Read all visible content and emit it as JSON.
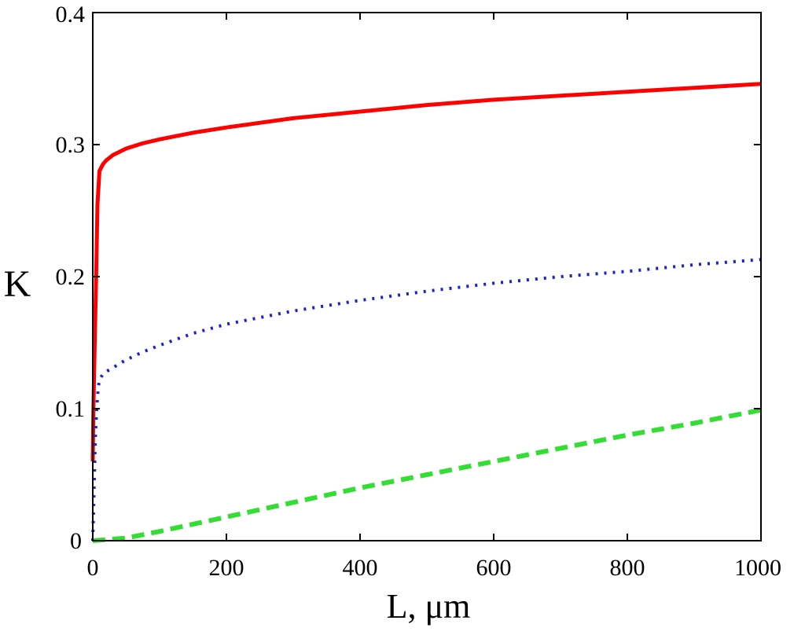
{
  "chart_data": {
    "type": "line",
    "title": "",
    "xlabel": "L, μm",
    "ylabel": "K",
    "xlim": [
      0,
      1000
    ],
    "ylim": [
      0,
      0.4
    ],
    "xticks": [
      0,
      200,
      400,
      600,
      800,
      1000
    ],
    "xtick_labels": [
      "0",
      "200",
      "400",
      "600",
      "800",
      "1000"
    ],
    "yticks": [
      0,
      0.1,
      0.2,
      0.3,
      0.4
    ],
    "ytick_labels": [
      "0",
      "0.1",
      "0.2",
      "0.3",
      "0.4"
    ],
    "grid": false,
    "legend": "none",
    "series": [
      {
        "name": "red-solid",
        "color": "#ff0000",
        "style": "solid",
        "x": [
          0,
          1,
          3,
          5,
          7,
          10,
          15,
          20,
          30,
          50,
          75,
          100,
          150,
          200,
          300,
          400,
          500,
          600,
          700,
          800,
          900,
          1000
        ],
        "y": [
          0.06,
          0.1,
          0.15,
          0.2,
          0.255,
          0.28,
          0.285,
          0.288,
          0.292,
          0.297,
          0.301,
          0.304,
          0.309,
          0.313,
          0.32,
          0.325,
          0.33,
          0.334,
          0.337,
          0.34,
          0.343,
          0.346
        ]
      },
      {
        "name": "blue-dotted",
        "color": "#1f1fd0",
        "style": "dotted",
        "x": [
          0,
          2,
          4,
          6,
          8,
          10,
          15,
          20,
          30,
          50,
          75,
          100,
          150,
          200,
          300,
          400,
          500,
          600,
          700,
          800,
          900,
          1000
        ],
        "y": [
          0.0,
          0.04,
          0.08,
          0.1,
          0.115,
          0.122,
          0.126,
          0.128,
          0.131,
          0.137,
          0.143,
          0.148,
          0.157,
          0.164,
          0.174,
          0.182,
          0.189,
          0.195,
          0.2,
          0.204,
          0.209,
          0.213
        ]
      },
      {
        "name": "green-dashed",
        "color": "#33dd33",
        "style": "dashed",
        "x": [
          0,
          50,
          100,
          200,
          300,
          400,
          500,
          600,
          700,
          800,
          900,
          1000
        ],
        "y": [
          0.0,
          0.002,
          0.007,
          0.018,
          0.029,
          0.04,
          0.05,
          0.06,
          0.07,
          0.08,
          0.089,
          0.099
        ]
      }
    ]
  }
}
